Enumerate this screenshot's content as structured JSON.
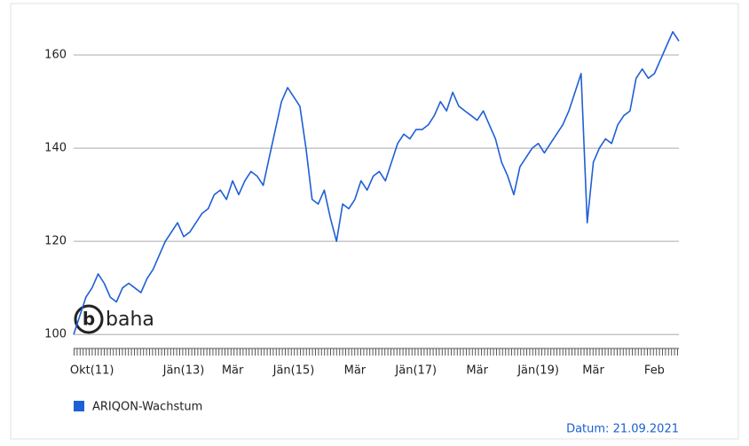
{
  "chart_data": {
    "type": "line",
    "categories": [
      null,
      null,
      null,
      "Okt(11)",
      null,
      null,
      null,
      null,
      null,
      null,
      null,
      null,
      null,
      null,
      null,
      null,
      null,
      null,
      "Jän(13)",
      null,
      null,
      null,
      null,
      null,
      null,
      null,
      "Mär",
      null,
      null,
      null,
      null,
      null,
      null,
      null,
      null,
      null,
      "Jän(15)",
      null,
      null,
      null,
      null,
      null,
      null,
      null,
      null,
      null,
      "Mär",
      null,
      null,
      null,
      null,
      null,
      null,
      null,
      null,
      null,
      "Jän(17)",
      null,
      null,
      null,
      null,
      null,
      null,
      null,
      null,
      null,
      "Mär",
      null,
      null,
      null,
      null,
      null,
      null,
      null,
      null,
      null,
      "Jän(19)",
      null,
      null,
      null,
      null,
      null,
      null,
      null,
      null,
      "Mär",
      null,
      null,
      null,
      null,
      null,
      null,
      null,
      null,
      null,
      "Feb",
      null,
      null,
      null,
      null
    ],
    "series": [
      {
        "name": "ARIQON-Wachstum",
        "color": "#1f5fd6",
        "values": [
          100,
          104,
          108,
          110,
          113,
          111,
          108,
          107,
          110,
          111,
          110,
          109,
          112,
          114,
          117,
          120,
          122,
          124,
          121,
          122,
          124,
          126,
          127,
          130,
          131,
          129,
          133,
          130,
          133,
          135,
          134,
          132,
          138,
          144,
          150,
          153,
          151,
          149,
          140,
          129,
          128,
          131,
          125,
          120,
          128,
          127,
          129,
          133,
          131,
          134,
          135,
          133,
          137,
          141,
          143,
          142,
          144,
          144,
          145,
          147,
          150,
          148,
          152,
          149,
          148,
          147,
          146,
          148,
          145,
          142,
          137,
          134,
          130,
          136,
          138,
          140,
          141,
          139,
          141,
          143,
          145,
          148,
          152,
          156,
          124,
          137,
          140,
          142,
          141,
          145,
          147,
          148,
          155,
          157,
          155,
          156,
          159,
          162,
          165,
          163
        ]
      }
    ],
    "ylim": [
      97,
      168
    ],
    "yticks": [
      100,
      120,
      140,
      160
    ],
    "grid": true,
    "logo": "baha",
    "date_label": "Datum: 21.09.2021"
  }
}
